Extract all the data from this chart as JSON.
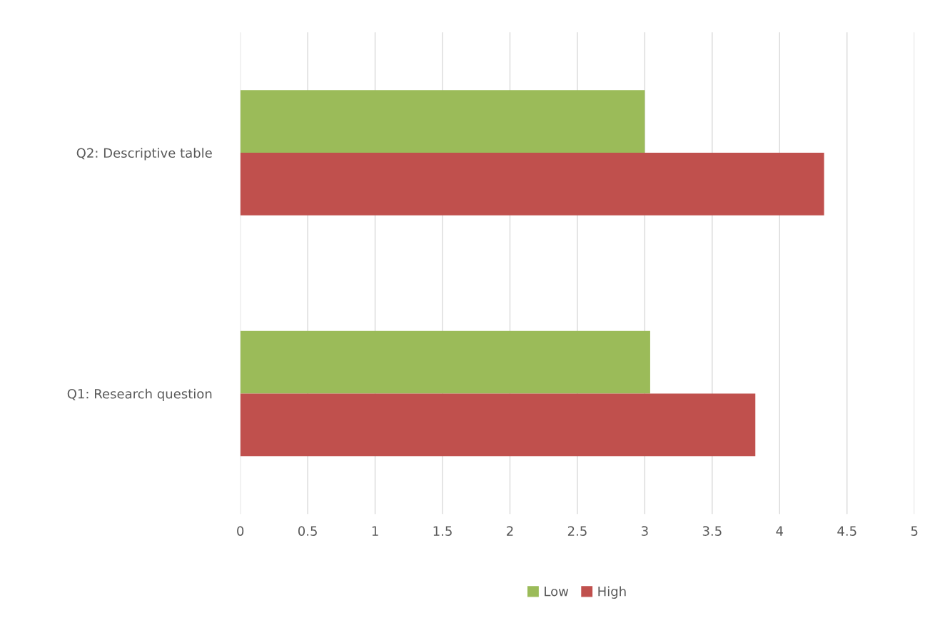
{
  "chart_data": {
    "type": "bar",
    "orientation": "horizontal",
    "categories": [
      "Q2: Descriptive table",
      "Q1: Research question"
    ],
    "series": [
      {
        "name": "Low",
        "color": "#9bbb59",
        "values": [
          3.0,
          3.04
        ]
      },
      {
        "name": "High",
        "color": "#c0504d",
        "values": [
          4.33,
          3.82
        ]
      }
    ],
    "xlim": [
      0,
      5
    ],
    "xticks": [
      0,
      0.5,
      1,
      1.5,
      2,
      2.5,
      3,
      3.5,
      4,
      4.5,
      5
    ],
    "grid": "x",
    "legend": "bottom"
  }
}
